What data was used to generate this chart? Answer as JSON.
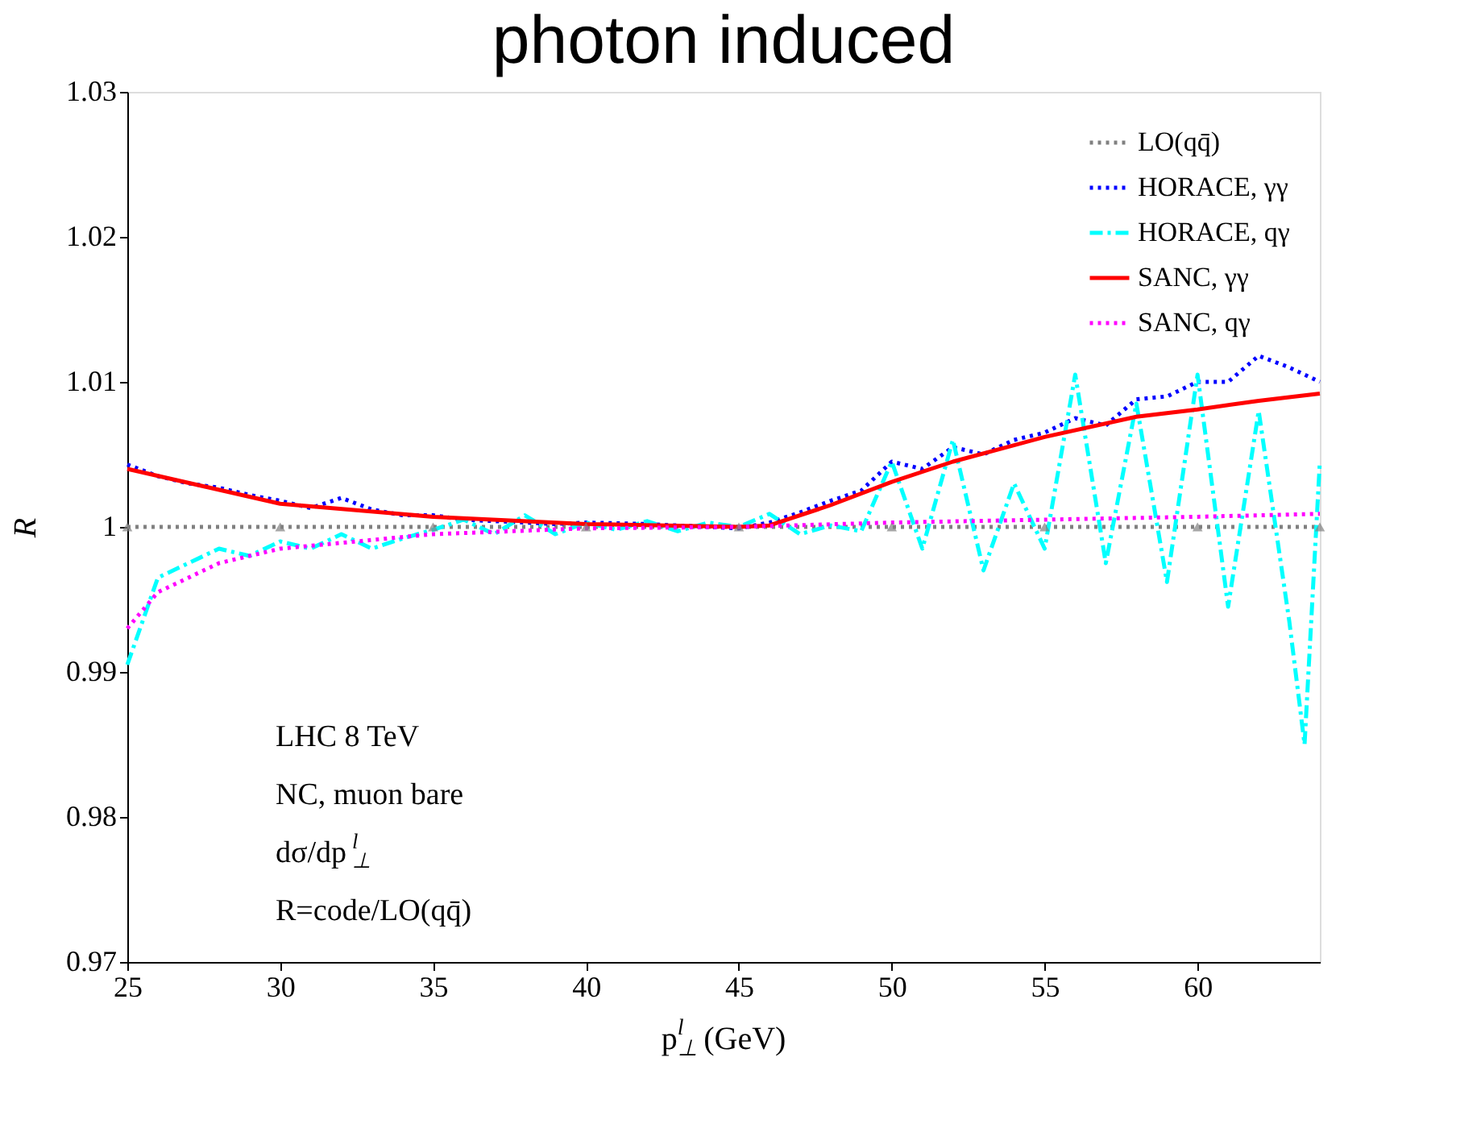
{
  "chart_data": {
    "type": "line",
    "title": "photon induced",
    "xlabel": "p$^{l}$$_{⊥}$ (GeV)",
    "ylabel": "R",
    "annotations": [
      "LHC 8 TeV",
      "NC, muon bare",
      "dσ/dp$^{l}$$_{⊥}$",
      "R=code/LO(qq̄)"
    ],
    "xlim": [
      25,
      64
    ],
    "xticks": [
      25,
      30,
      35,
      40,
      45,
      50,
      55,
      60
    ],
    "ylim": [
      0.97,
      1.03
    ],
    "yticks": [
      0.97,
      0.98,
      0.99,
      1,
      1.01,
      1.02,
      1.03
    ],
    "grid": false,
    "legend": "top right",
    "series": [
      {
        "name": "LO(qq̄)",
        "color": "#808080",
        "line_style": "dotted",
        "marker": "triangle",
        "x": [
          25,
          30,
          35,
          40,
          45,
          50,
          55,
          60,
          64
        ],
        "values": [
          1,
          1,
          1,
          1,
          1,
          1,
          1,
          1,
          1
        ]
      },
      {
        "name": "HORACE, γγ",
        "color": "#0000ff",
        "line_style": "dotted",
        "x": [
          25,
          26,
          27,
          28,
          29,
          30,
          31,
          32,
          33,
          34,
          35,
          36,
          37,
          38,
          39,
          40,
          42,
          44,
          45,
          46,
          47,
          48,
          49,
          50,
          51,
          52,
          53,
          54,
          55,
          56,
          57,
          58,
          59,
          60,
          61,
          62,
          63,
          64
        ],
        "values": [
          1.0043,
          1.0035,
          1.003,
          1.0027,
          1.0022,
          1.0018,
          1.0013,
          1.002,
          1.0012,
          1.0008,
          1.0008,
          1.0005,
          1.0004,
          1.0003,
          1.0002,
          1.0003,
          1.0002,
          1.0,
          0.9999,
          1.0003,
          1.001,
          1.0018,
          1.0025,
          1.0045,
          1.004,
          1.0055,
          1.005,
          1.006,
          1.0065,
          1.0075,
          1.007,
          1.0088,
          1.009,
          1.01,
          1.01,
          1.0118,
          1.011,
          1.01
        ]
      },
      {
        "name": "HORACE, qγ",
        "color": "#00ffff",
        "line_style": "dashed",
        "x": [
          25,
          26,
          27,
          28,
          29,
          30,
          31,
          32,
          33,
          34,
          35,
          36,
          37,
          38,
          39,
          40,
          41,
          42,
          43,
          44,
          45,
          46,
          47,
          48,
          49,
          50,
          51,
          52,
          53,
          54,
          55,
          56,
          57,
          58,
          59,
          60,
          61,
          62,
          63,
          63.5,
          64
        ],
        "values": [
          0.9905,
          0.9965,
          0.9975,
          0.9985,
          0.998,
          0.999,
          0.9985,
          0.9995,
          0.9985,
          0.9992,
          0.9998,
          1.0005,
          0.9995,
          1.0008,
          0.9995,
          1.0003,
          0.9998,
          1.0004,
          0.9997,
          1.0003,
          1.0,
          1.0009,
          0.9995,
          1.0001,
          0.9997,
          1.0045,
          0.9985,
          1.006,
          0.997,
          1.003,
          0.9985,
          1.0105,
          0.9975,
          1.0085,
          0.9962,
          1.0105,
          0.9945,
          1.008,
          0.9935,
          0.985,
          1.0045
        ]
      },
      {
        "name": "SANC, γγ",
        "color": "#ff0000",
        "line_style": "solid",
        "x": [
          25,
          30,
          35,
          40,
          45,
          46,
          48,
          50,
          52,
          55,
          58,
          60,
          62,
          64
        ],
        "values": [
          1.004,
          1.0016,
          1.0007,
          1.0002,
          1.0,
          1.0001,
          1.0015,
          1.0031,
          1.0045,
          1.0062,
          1.0076,
          1.0081,
          1.0087,
          1.0092
        ]
      },
      {
        "name": "SANC, qγ",
        "color": "#ff00ff",
        "line_style": "dotted",
        "x": [
          25,
          26,
          28,
          30,
          35,
          40,
          45,
          50,
          55,
          60,
          64
        ],
        "values": [
          0.993,
          0.9955,
          0.9975,
          0.9985,
          0.9995,
          0.9999,
          1.0,
          1.0003,
          1.0005,
          1.0007,
          1.0009
        ]
      }
    ]
  }
}
